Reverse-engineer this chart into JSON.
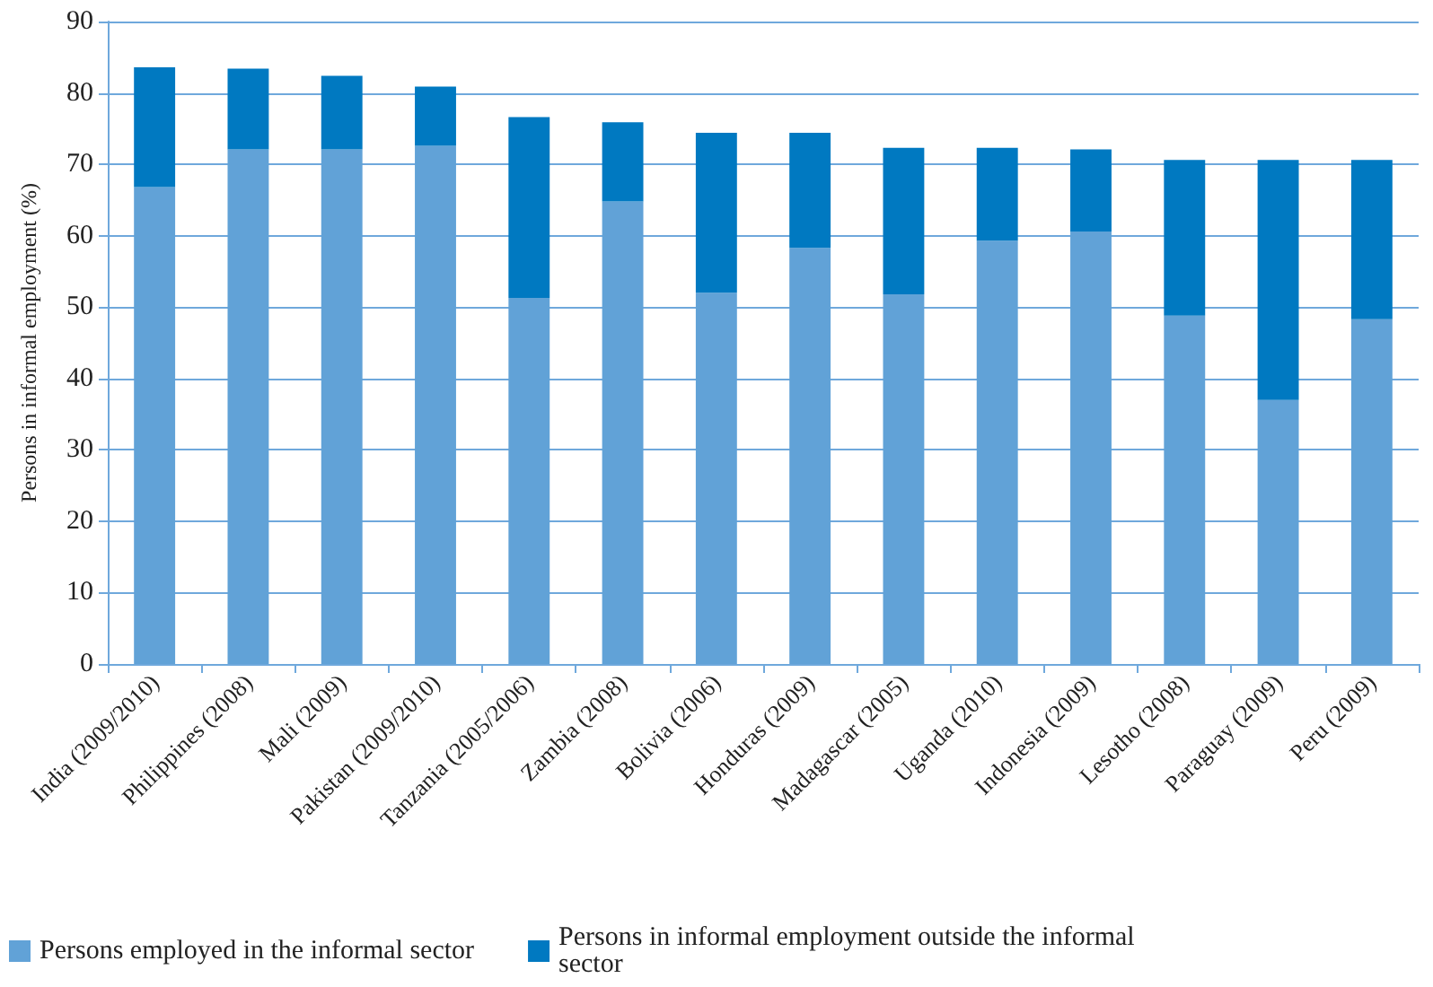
{
  "chart_data": {
    "type": "bar",
    "stacked": true,
    "ylabel": "Persons in informal employment (%)",
    "categories": [
      "India (2009/2010)",
      "Philippines (2008)",
      "Mali (2009)",
      "Pakistan (2009/2010)",
      "Tanzania (2005/2006)",
      "Zambia (2008)",
      "Bolivia (2006)",
      "Honduras (2009)",
      "Madagascar (2005)",
      "Uganda (2010)",
      "Indonesia (2009)",
      "Lesotho (2008)",
      "Paraguay (2009)",
      "Peru (2009)"
    ],
    "series": [
      {
        "name": "Persons employed in the informal sector",
        "color": "#61a2d7",
        "values": [
          66.8,
          72.1,
          72.1,
          72.6,
          51.3,
          64.8,
          52.0,
          58.3,
          51.8,
          59.3,
          60.6,
          48.8,
          37.0,
          48.3
        ]
      },
      {
        "name": "Persons in informal employment outside the informal sector",
        "color": "#0079c1",
        "values": [
          16.8,
          11.3,
          10.3,
          8.3,
          25.3,
          11.1,
          22.4,
          16.1,
          20.5,
          13.0,
          11.5,
          21.8,
          33.6,
          22.3
        ]
      }
    ],
    "ylim": [
      0,
      90
    ],
    "yticks": [
      0,
      10,
      20,
      30,
      40,
      50,
      60,
      70,
      80,
      90
    ],
    "grid": "y",
    "legend": "bottom"
  }
}
